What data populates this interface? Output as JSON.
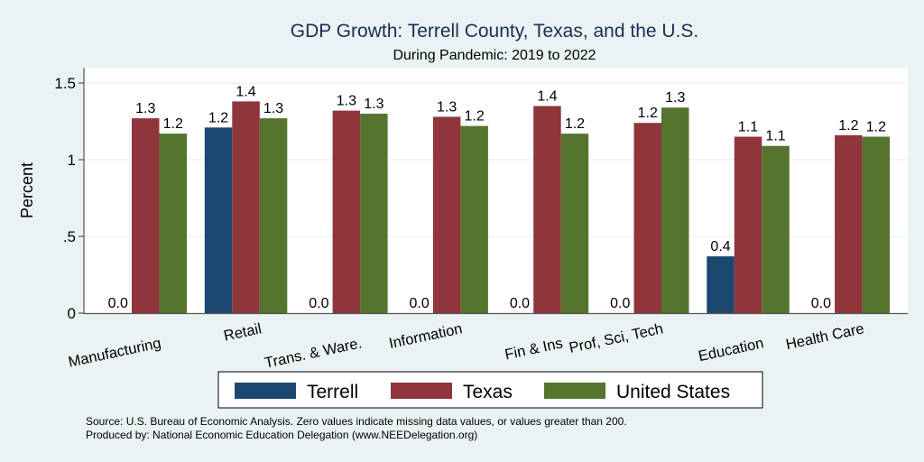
{
  "chart_data": {
    "type": "bar",
    "title": "GDP Growth: Terrell County, Texas, and the U.S.",
    "subtitle": "During Pandemic: 2019 to 2022",
    "xlabel": "",
    "ylabel": "Percent",
    "ylim": [
      0,
      1.6
    ],
    "yticks": [
      {
        "value": 0,
        "label": "0"
      },
      {
        "value": 0.5,
        "label": ".5"
      },
      {
        "value": 1,
        "label": "1"
      },
      {
        "value": 1.5,
        "label": "1.5"
      }
    ],
    "grid": true,
    "legend_position": "bottom",
    "categories": [
      "Manufacturing",
      "Retail",
      "Trans. & Ware.",
      "Information",
      "Fin & Ins",
      "Prof, Sci, Tech",
      "Education",
      "Health Care"
    ],
    "series": [
      {
        "name": "Terrell",
        "color": "#1c4870",
        "values": [
          0,
          1.21,
          0,
          0,
          0,
          0,
          0.37,
          0
        ],
        "labels": [
          "0.0",
          "1.2",
          "0.0",
          "0.0",
          "0.0",
          "0.0",
          "0.4",
          "0.0"
        ]
      },
      {
        "name": "Texas",
        "color": "#90353b",
        "values": [
          1.27,
          1.38,
          1.32,
          1.28,
          1.35,
          1.24,
          1.15,
          1.16
        ],
        "labels": [
          "1.3",
          "1.4",
          "1.3",
          "1.3",
          "1.4",
          "1.2",
          "1.1",
          "1.2"
        ]
      },
      {
        "name": "United States",
        "color": "#55752f",
        "values": [
          1.17,
          1.27,
          1.3,
          1.22,
          1.17,
          1.34,
          1.09,
          1.15
        ],
        "labels": [
          "1.2",
          "1.3",
          "1.3",
          "1.2",
          "1.2",
          "1.3",
          "1.1",
          "1.2"
        ]
      }
    ],
    "notes": [
      "Source: U.S. Bureau of Economic Analysis. Zero values indicate missing data values, or values greater than 200.",
      "Produced by: National Economic Education Delegation (www.NEEDelegation.org)"
    ]
  }
}
